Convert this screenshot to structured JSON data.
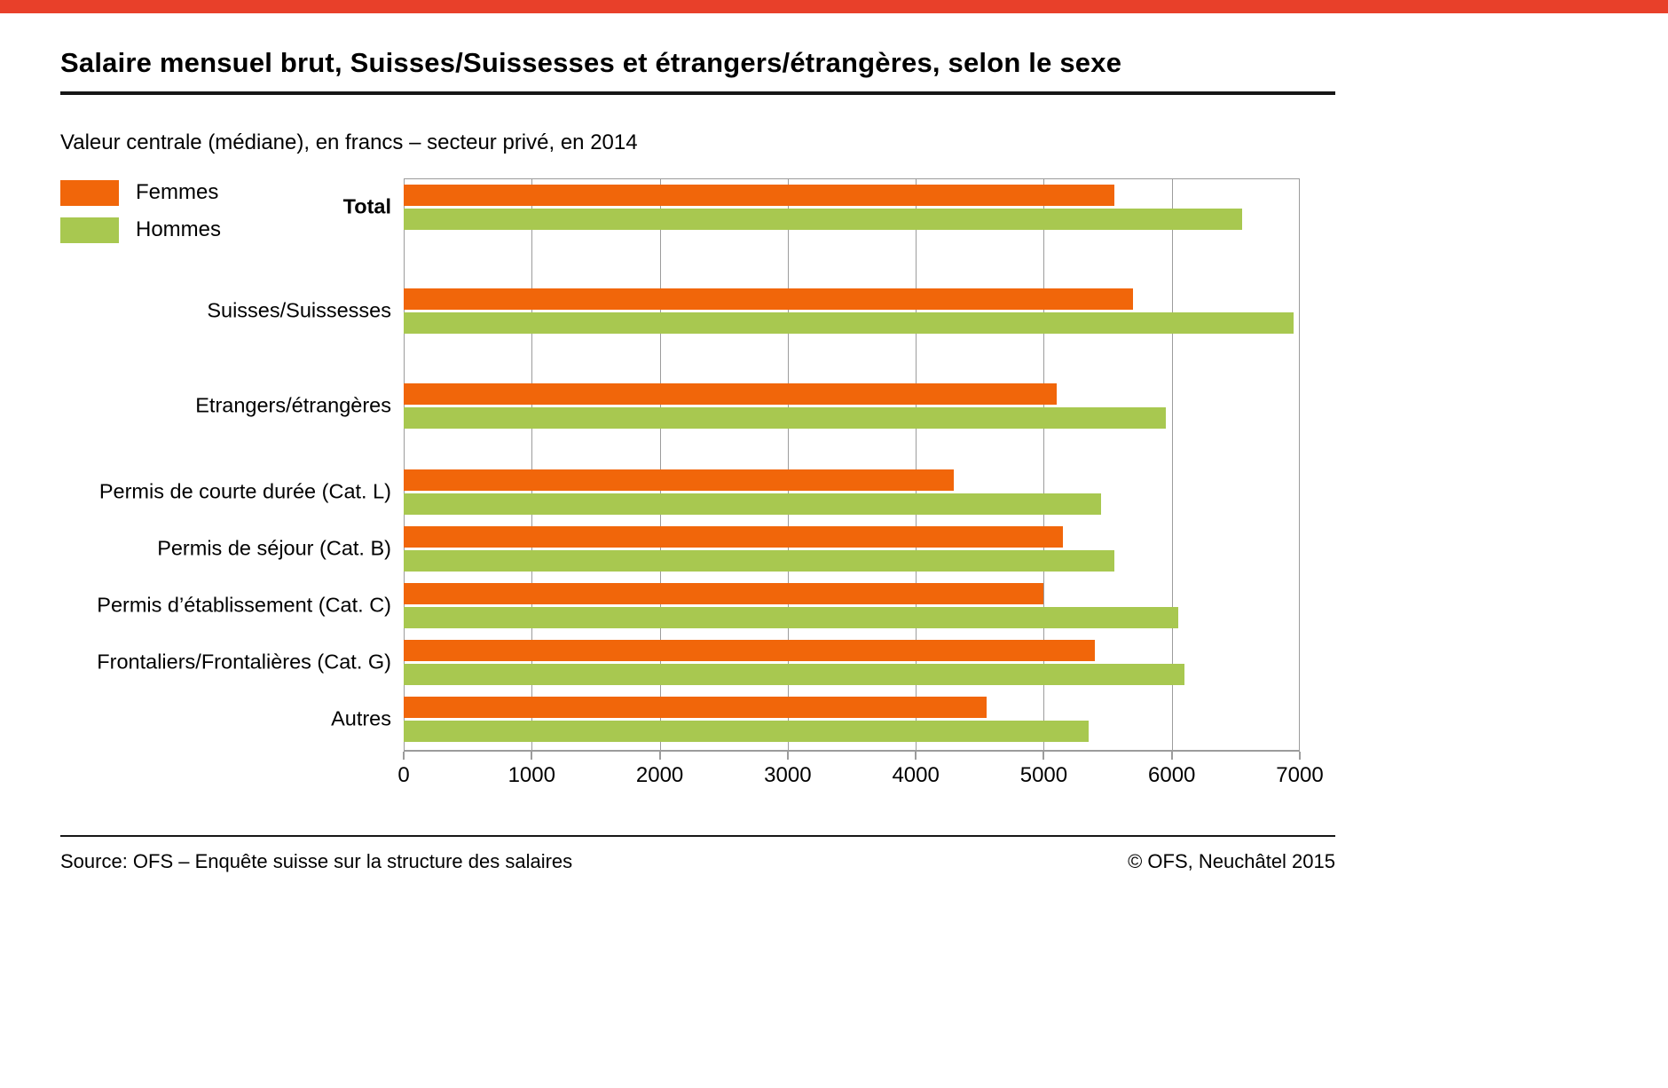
{
  "top_band_color": "#e8402a",
  "header": {
    "title": "Salaire mensuel brut, Suisses/Suissesses et étrangers/étrangères, selon le sexe",
    "subtitle": "Valeur centrale (médiane), en francs – secteur privé, en 2014"
  },
  "legend": {
    "items": [
      {
        "label": "Femmes",
        "color": "#f1660a"
      },
      {
        "label": "Hommes",
        "color": "#a8c850"
      }
    ]
  },
  "chart_data": {
    "type": "bar",
    "orientation": "horizontal",
    "title": "Salaire mensuel brut, Suisses/Suissesses et étrangers/étrangères, selon le sexe",
    "subtitle": "Valeur centrale (médiane), en francs – secteur privé, en 2014",
    "categories": [
      "Total",
      "Suisses/Suissesses",
      "Etrangers/étrangères",
      "Permis de courte durée (Cat. L)",
      "Permis de séjour (Cat. B)",
      "Permis d’établissement (Cat. C)",
      "Frontaliers/Frontalières (Cat. G)",
      "Autres"
    ],
    "series": [
      {
        "name": "Femmes",
        "color": "#f1660a",
        "values": [
          5550,
          5700,
          5100,
          4300,
          5150,
          5000,
          5400,
          4550
        ]
      },
      {
        "name": "Hommes",
        "color": "#a8c850",
        "values": [
          6550,
          6950,
          5950,
          5450,
          5550,
          6050,
          6100,
          5350
        ]
      }
    ],
    "xlabel": "",
    "ylabel": "",
    "xlim": [
      0,
      7000
    ],
    "ticks": [
      0,
      1000,
      2000,
      3000,
      4000,
      5000,
      6000,
      7000
    ],
    "grid": true,
    "legend_position": "top-left",
    "emphasized_category": "Total"
  },
  "footer": {
    "source": "Source: OFS – Enquête suisse sur la structure des salaires",
    "copyright": "© OFS, Neuchâtel 2015"
  }
}
